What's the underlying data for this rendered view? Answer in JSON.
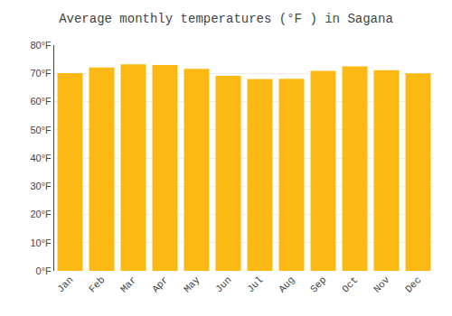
{
  "chart_data": {
    "type": "bar",
    "title": "Average monthly temperatures (°F ) in Sagana",
    "categories": [
      "Jan",
      "Feb",
      "Mar",
      "Apr",
      "May",
      "Jun",
      "Jul",
      "Aug",
      "Sep",
      "Oct",
      "Nov",
      "Dec"
    ],
    "values": [
      70.1,
      72.1,
      73.2,
      73.0,
      71.6,
      69.1,
      68.0,
      68.1,
      70.9,
      72.5,
      71.1,
      70.0
    ],
    "color": "#FDB913",
    "ylim": [
      0,
      80
    ],
    "yticks": [
      {
        "value": 0,
        "label": "0°F"
      },
      {
        "value": 10,
        "label": "10°F"
      },
      {
        "value": 20,
        "label": "20°F"
      },
      {
        "value": 30,
        "label": "30°F"
      },
      {
        "value": 40,
        "label": "40°F"
      },
      {
        "value": 50,
        "label": "50°F"
      },
      {
        "value": 60,
        "label": "60°F"
      },
      {
        "value": 70,
        "label": "70°F"
      },
      {
        "value": 80,
        "label": "80°F"
      }
    ],
    "grid": true
  }
}
